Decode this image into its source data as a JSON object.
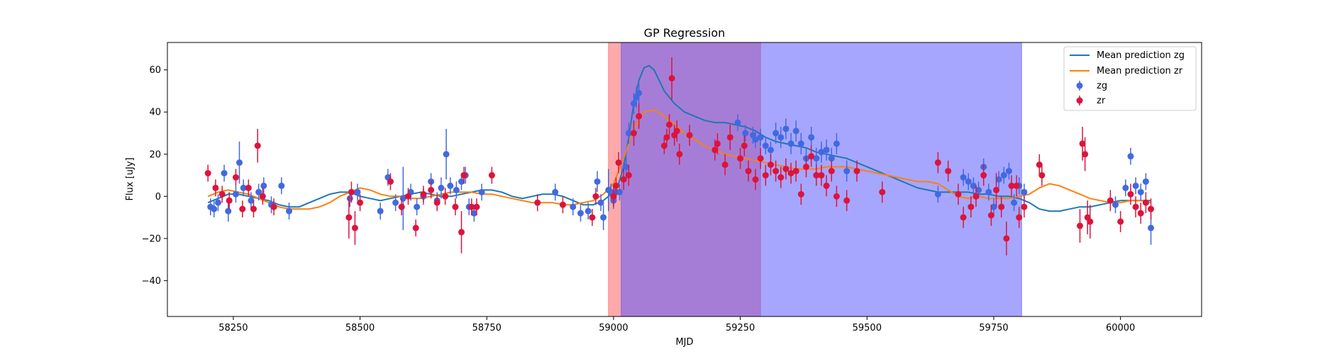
{
  "chart_data": {
    "type": "scatter",
    "title": "GP Regression",
    "xlabel": "MJD",
    "ylabel": "Flux [uJy]",
    "xlim": [
      58120,
      60160
    ],
    "ylim": [
      -57,
      73
    ],
    "xticks": [
      58250,
      58500,
      58750,
      59000,
      59250,
      59500,
      59750,
      60000
    ],
    "yticks": [
      -40,
      -20,
      0,
      20,
      40,
      60
    ],
    "grid": false,
    "legend_position": "top-right",
    "colors": {
      "zg_line": "#1f77b4",
      "zr_line": "#ff7f0e",
      "zg_points": "#4169e1",
      "zr_points": "#dc143c"
    },
    "spans": [
      {
        "x0": 58990,
        "x1": 59290,
        "color": "#ff5555",
        "opacity": 0.5
      },
      {
        "x0": 59015,
        "x1": 59805,
        "color": "#5555ff",
        "opacity": 0.52
      }
    ],
    "series": [
      {
        "name": "Mean prediction zg",
        "kind": "line",
        "color": "#1f77b4",
        "x": [
          58200,
          58220,
          58240,
          58260,
          58280,
          58300,
          58320,
          58340,
          58360,
          58380,
          58400,
          58420,
          58440,
          58460,
          58480,
          58500,
          58520,
          58540,
          58560,
          58580,
          58600,
          58620,
          58640,
          58660,
          58680,
          58700,
          58720,
          58740,
          58760,
          58780,
          58800,
          58820,
          58840,
          58860,
          58880,
          58900,
          58920,
          58940,
          58960,
          58980,
          59000,
          59010,
          59020,
          59030,
          59040,
          59050,
          59060,
          59070,
          59080,
          59090,
          59100,
          59120,
          59140,
          59160,
          59180,
          59200,
          59220,
          59240,
          59260,
          59280,
          59300,
          59320,
          59340,
          59360,
          59380,
          59400,
          59420,
          59440,
          59460,
          59480,
          59500,
          59520,
          59540,
          59560,
          59580,
          59600,
          59620,
          59640,
          59660,
          59680,
          59700,
          59720,
          59740,
          59760,
          59780,
          59800,
          59820,
          59840,
          59860,
          59880,
          59900,
          59920,
          59940,
          59960,
          59980,
          60000,
          60020,
          60040,
          60060
        ],
        "y": [
          -3,
          -1,
          1,
          1,
          0,
          -1,
          -2,
          -4,
          -5,
          -5,
          -3,
          -1,
          1,
          2,
          2,
          0,
          -1,
          -2,
          -1,
          0,
          1,
          2,
          1,
          0,
          0,
          1,
          2,
          3,
          3,
          2,
          0,
          -1,
          0,
          1,
          1,
          0,
          -2,
          -4,
          -4,
          -2,
          2,
          6,
          14,
          28,
          44,
          55,
          61,
          62,
          60,
          55,
          50,
          44,
          40,
          38,
          36,
          35,
          35,
          34,
          33,
          31,
          28,
          26,
          25,
          24,
          23,
          21,
          20,
          19,
          18,
          16,
          14,
          12,
          10,
          8,
          6,
          4,
          3,
          2,
          2,
          2,
          2,
          1,
          1,
          0,
          0,
          -1,
          -3,
          -6,
          -7,
          -7,
          -6,
          -5,
          -5,
          -4,
          -3,
          -2,
          -2,
          -2,
          -2
        ]
      },
      {
        "name": "Mean prediction zr",
        "kind": "line",
        "color": "#ff7f0e",
        "x": [
          58200,
          58220,
          58240,
          58260,
          58280,
          58300,
          58320,
          58340,
          58360,
          58380,
          58400,
          58420,
          58440,
          58460,
          58480,
          58500,
          58520,
          58540,
          58560,
          58580,
          58600,
          58620,
          58640,
          58660,
          58680,
          58700,
          58720,
          58740,
          58760,
          58780,
          58800,
          58820,
          58840,
          58860,
          58880,
          58900,
          58920,
          58940,
          58960,
          58980,
          59000,
          59020,
          59040,
          59060,
          59080,
          59100,
          59120,
          59140,
          59160,
          59180,
          59200,
          59220,
          59240,
          59260,
          59280,
          59300,
          59320,
          59340,
          59360,
          59380,
          59400,
          59420,
          59440,
          59460,
          59480,
          59500,
          59520,
          59540,
          59560,
          59580,
          59600,
          59620,
          59640,
          59660,
          59680,
          59700,
          59720,
          59740,
          59760,
          59780,
          59800,
          59820,
          59840,
          59860,
          59880,
          59900,
          59920,
          59940,
          59960,
          59980,
          60000,
          60020,
          60040,
          60060
        ],
        "y": [
          0,
          2,
          3,
          2,
          1,
          -1,
          -3,
          -5,
          -6,
          -6,
          -6,
          -5,
          -3,
          0,
          2,
          4,
          3,
          1,
          0,
          0,
          -1,
          -1,
          0,
          1,
          2,
          2,
          2,
          1,
          1,
          0,
          -1,
          -2,
          -3,
          -3,
          -3,
          -4,
          -4,
          -3,
          -2,
          1,
          6,
          18,
          32,
          40,
          41,
          38,
          34,
          30,
          27,
          24,
          22,
          20,
          19,
          18,
          17,
          16,
          15,
          14,
          13,
          13,
          13,
          14,
          14,
          14,
          13,
          12,
          11,
          10,
          9,
          8,
          7,
          7,
          6,
          3,
          0,
          -1,
          0,
          -1,
          -1,
          -1,
          0,
          1,
          4,
          6,
          5,
          3,
          1,
          -1,
          -2,
          -3,
          -3,
          -2,
          -2,
          -3
        ]
      },
      {
        "name": "zg",
        "kind": "errorbar",
        "color": "#4169e1",
        "x": [
          58205,
          58212,
          58220,
          58232,
          58240,
          58255,
          58262,
          58270,
          58285,
          58300,
          58310,
          58325,
          58345,
          58360,
          58480,
          58495,
          58540,
          58555,
          58570,
          58585,
          58600,
          58612,
          58625,
          58640,
          58652,
          58660,
          58670,
          58678,
          58690,
          58700,
          58708,
          58715,
          58725,
          58740,
          58885,
          58920,
          58935,
          58950,
          58968,
          58975,
          58980,
          58990,
          58995,
          59000,
          59005,
          59012,
          59025,
          59030,
          59040,
          59045,
          59050,
          59245,
          59260,
          59275,
          59280,
          59290,
          59300,
          59310,
          59320,
          59330,
          59340,
          59350,
          59360,
          59370,
          59380,
          59390,
          59400,
          59410,
          59420,
          59430,
          59440,
          59460,
          59640,
          59690,
          59700,
          59710,
          59720,
          59730,
          59740,
          59750,
          59760,
          59770,
          59780,
          59790,
          59800,
          59810,
          59990,
          60010,
          60020,
          60030,
          60040,
          60050,
          60060
        ],
        "y": [
          -5,
          -6,
          -3,
          11,
          -7,
          1,
          16,
          4,
          -2,
          2,
          5,
          -4,
          5,
          -7,
          -1,
          2,
          -7,
          9,
          -3,
          -1,
          2,
          -5,
          0,
          7,
          -2,
          4,
          20,
          5,
          3,
          7,
          10,
          -5,
          -8,
          2,
          2,
          -5,
          -8,
          -7,
          7,
          -3,
          -10,
          3,
          2,
          -2,
          2,
          2,
          14,
          30,
          44,
          47,
          49,
          35,
          30,
          29,
          27,
          28,
          24,
          22,
          30,
          28,
          32,
          25,
          31,
          25,
          18,
          28,
          18,
          21,
          22,
          18,
          25,
          12,
          1,
          9,
          7,
          5,
          3,
          14,
          2,
          -5,
          8,
          10,
          12,
          -3,
          5,
          2,
          -4,
          4,
          19,
          5,
          2,
          7,
          -15
        ],
        "err": [
          4,
          4,
          4,
          4,
          5,
          4,
          10,
          4,
          4,
          4,
          4,
          4,
          4,
          4,
          4,
          4,
          4,
          4,
          4,
          15,
          4,
          4,
          4,
          4,
          4,
          5,
          12,
          4,
          4,
          4,
          4,
          4,
          4,
          4,
          4,
          4,
          4,
          4,
          5,
          4,
          6,
          10,
          4,
          4,
          4,
          4,
          5,
          5,
          5,
          5,
          5,
          4,
          4,
          4,
          4,
          4,
          4,
          4,
          5,
          5,
          5,
          5,
          5,
          5,
          5,
          5,
          5,
          5,
          5,
          5,
          5,
          5,
          4,
          4,
          4,
          4,
          4,
          4,
          4,
          4,
          4,
          4,
          4,
          4,
          4,
          4,
          4,
          4,
          4,
          4,
          4,
          4,
          8
        ]
      },
      {
        "name": "zr",
        "kind": "errorbar",
        "color": "#dc143c",
        "x": [
          58200,
          58215,
          58228,
          58242,
          58255,
          58268,
          58280,
          58290,
          58298,
          58308,
          58330,
          58478,
          58483,
          58490,
          58500,
          58560,
          58582,
          58595,
          58610,
          58625,
          58640,
          58652,
          58668,
          58688,
          58700,
          58705,
          58720,
          58730,
          58760,
          58850,
          58900,
          58958,
          58965,
          59000,
          59005,
          59010,
          59020,
          59030,
          59040,
          59050,
          59100,
          59105,
          59110,
          59115,
          59120,
          59125,
          59130,
          59150,
          59200,
          59205,
          59220,
          59230,
          59250,
          59258,
          59266,
          59280,
          59290,
          59300,
          59310,
          59320,
          59330,
          59340,
          59350,
          59360,
          59370,
          59380,
          59390,
          59400,
          59410,
          59420,
          59430,
          59440,
          59460,
          59480,
          59530,
          59640,
          59660,
          59680,
          59690,
          59705,
          59715,
          59730,
          59745,
          59755,
          59765,
          59775,
          59785,
          59795,
          59800,
          59810,
          59840,
          59845,
          59920,
          59925,
          59930,
          59935,
          59940,
          59980,
          60000,
          60020,
          60030,
          60040,
          60050,
          60060
        ],
        "y": [
          11,
          4,
          1,
          -2,
          9,
          -6,
          4,
          -6,
          24,
          0,
          -5,
          -10,
          2,
          -15,
          -3,
          7,
          -5,
          0,
          -15,
          1,
          3,
          -3,
          0,
          -5,
          -17,
          10,
          -5,
          -5,
          10,
          -3,
          -4,
          -10,
          0,
          0,
          5,
          16,
          8,
          10,
          30,
          38,
          24,
          28,
          34,
          56,
          29,
          31,
          20,
          29,
          22,
          25,
          15,
          28,
          18,
          24,
          12,
          8,
          18,
          10,
          15,
          12,
          9,
          13,
          11,
          12,
          1,
          14,
          19,
          10,
          10,
          5,
          12,
          0,
          -2,
          12,
          2,
          16,
          12,
          1,
          -10,
          -5,
          0,
          10,
          -9,
          3,
          -5,
          -20,
          5,
          5,
          -10,
          -5,
          15,
          10,
          -14,
          25,
          20,
          -10,
          -12,
          -2,
          -12,
          1,
          -5,
          -8,
          -3,
          -6
        ],
        "err": [
          4,
          4,
          4,
          4,
          4,
          4,
          4,
          4,
          8,
          4,
          4,
          10,
          5,
          8,
          4,
          4,
          4,
          4,
          4,
          4,
          4,
          4,
          4,
          4,
          10,
          4,
          4,
          4,
          4,
          4,
          4,
          4,
          4,
          5,
          4,
          5,
          5,
          5,
          6,
          6,
          4,
          4,
          5,
          10,
          5,
          5,
          5,
          5,
          5,
          5,
          5,
          6,
          5,
          5,
          5,
          5,
          5,
          5,
          5,
          5,
          5,
          5,
          5,
          5,
          5,
          5,
          5,
          5,
          5,
          5,
          5,
          5,
          5,
          5,
          5,
          5,
          5,
          5,
          5,
          5,
          5,
          5,
          5,
          8,
          5,
          8,
          5,
          5,
          5,
          5,
          5,
          5,
          8,
          8,
          8,
          8,
          8,
          5,
          5,
          5,
          5,
          5,
          5,
          5
        ]
      }
    ]
  }
}
